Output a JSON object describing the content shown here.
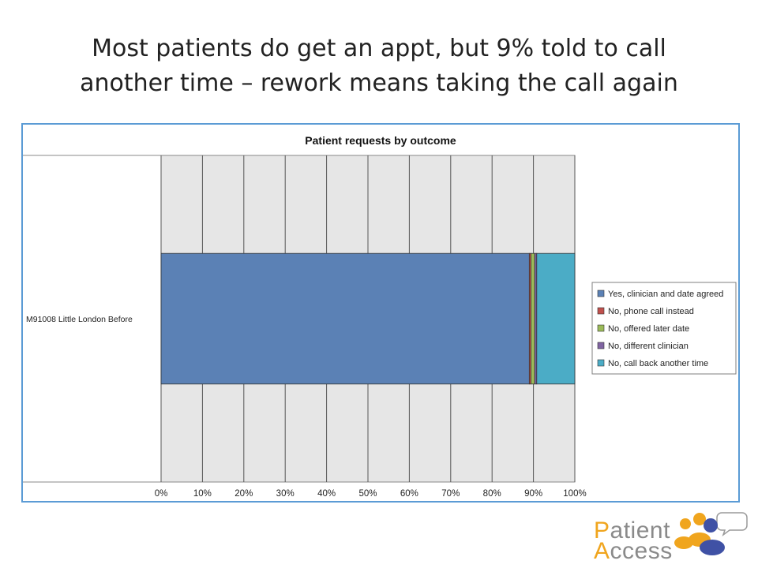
{
  "slide": {
    "title_line1": "Most patients do get an appt, but 9% told to call",
    "title_line2": "another time – rework means taking the call again"
  },
  "chart_data": {
    "type": "bar",
    "orientation": "horizontal",
    "stacked": "percent",
    "title": "Patient requests by outcome",
    "categories": [
      "M91008 Little London   Before"
    ],
    "series": [
      {
        "name": "Yes, clinician and date agreed",
        "values": [
          89
        ],
        "color": "#5b81b5"
      },
      {
        "name": "No, phone call instead",
        "values": [
          0.4
        ],
        "color": "#c0504d"
      },
      {
        "name": "No, offered later date",
        "values": [
          0.9
        ],
        "color": "#9bbb59"
      },
      {
        "name": "No, different clinician",
        "values": [
          0.5
        ],
        "color": "#8064a2"
      },
      {
        "name": "No, call back another time",
        "values": [
          9.2
        ],
        "color": "#4bacc6"
      }
    ],
    "xlim": [
      0,
      100
    ],
    "x_ticks": [
      "0%",
      "10%",
      "20%",
      "30%",
      "40%",
      "50%",
      "60%",
      "70%",
      "80%",
      "90%",
      "100%"
    ],
    "grid": true,
    "legend_position": "right"
  },
  "logo": {
    "word1_initial": "P",
    "word1_rest": "atient",
    "word2_initial": "A",
    "word2_rest": "ccess"
  },
  "colors": {
    "chart_border": "#5b9bd5",
    "plot_background": "#e6e6e6",
    "logo_accent": "#f0a51e",
    "logo_text": "#8a8a8a"
  }
}
